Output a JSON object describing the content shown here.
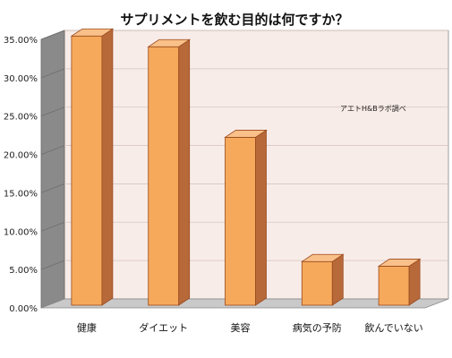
{
  "chart_data": {
    "type": "bar",
    "title": "サプリメントを飲む目的は何ですか？",
    "annotation": "アエトH&Bラボ調べ",
    "categories": [
      "健康",
      "ダイエット",
      "美容",
      "病気の予防",
      "飲んでいない"
    ],
    "values": [
      35.2,
      33.8,
      22.0,
      5.8,
      5.2
    ],
    "ylim": [
      0,
      35
    ],
    "yticks": [
      "0.00%",
      "5.00%",
      "10.00%",
      "15.00%",
      "20.00%",
      "25.00%",
      "30.00%",
      "35.00%"
    ],
    "ytick_values": [
      0,
      5,
      10,
      15,
      20,
      25,
      30,
      35
    ],
    "xlabel": "",
    "ylabel": "",
    "grid": true,
    "colors": {
      "bar_front": "#f6a95b",
      "bar_side": "#b8693a",
      "bar_top": "#f9c089",
      "bar_stroke": "#9a4a1e",
      "wall": "#f8ece8",
      "side_wall": "#8a8a8a",
      "floor": "#c9c9c9",
      "grid": "#d8c5c0"
    }
  }
}
